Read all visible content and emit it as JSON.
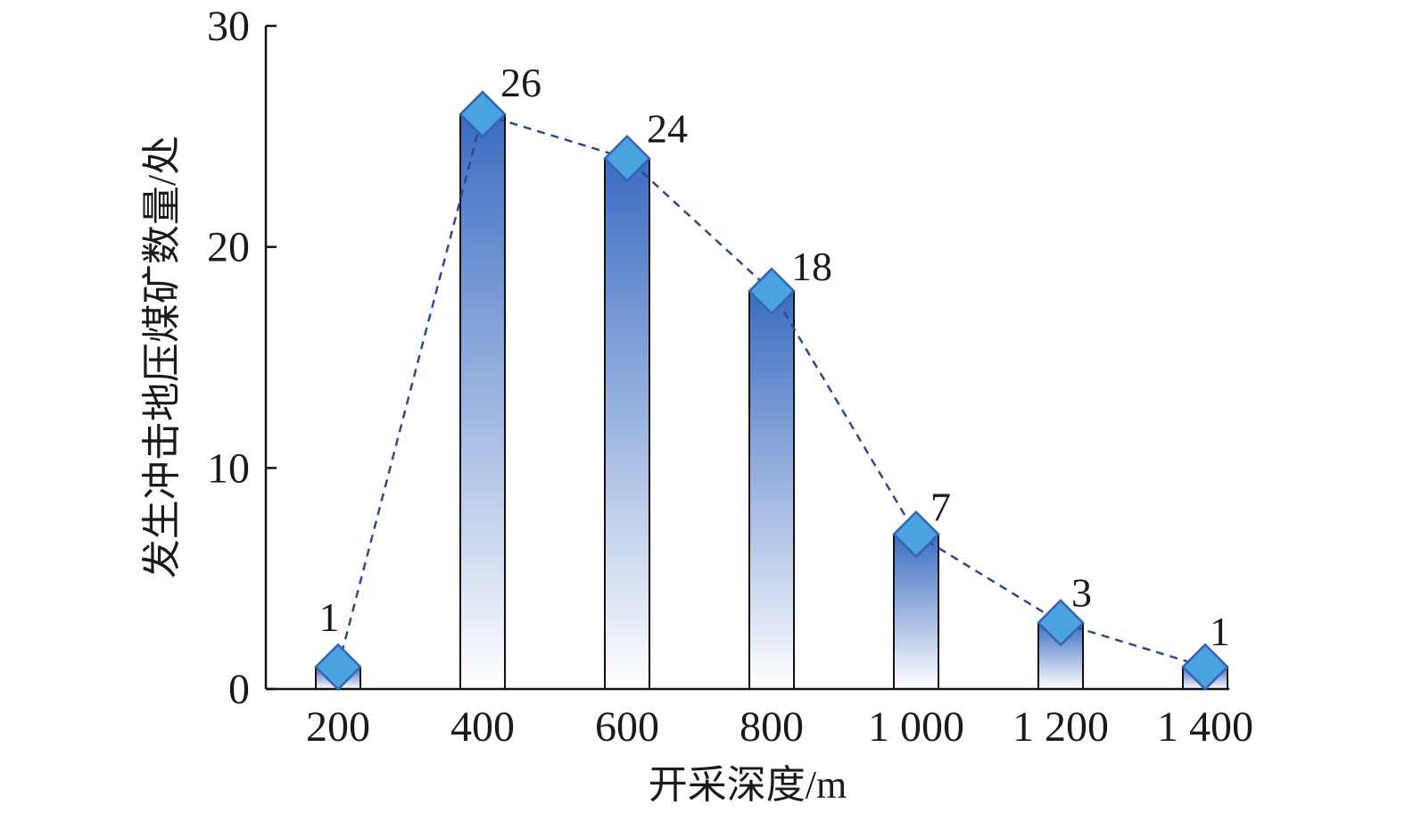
{
  "chart_data": {
    "type": "bar",
    "categories": [
      "200",
      "400",
      "600",
      "800",
      "1 000",
      "1 200",
      "1 400"
    ],
    "values": [
      1,
      26,
      24,
      18,
      7,
      3,
      1
    ],
    "data_labels": [
      "1",
      "26",
      "24",
      "18",
      "7",
      "3",
      "1"
    ],
    "title": "",
    "xlabel": "开采深度/m",
    "ylabel": "发生冲击地压煤矿数量/处",
    "ylim": [
      0,
      30
    ],
    "yticks": [
      "0",
      "10",
      "20",
      "30"
    ],
    "grid": false,
    "legend": "none",
    "overlay": {
      "type": "line",
      "style": "dashed",
      "marker": "diamond"
    },
    "colors": {
      "bar_top": "#3b6cc2",
      "bar_bottom": "#ffffff",
      "bar_outline": "#111111",
      "line": "#2f4a8a",
      "marker_fill": "#4aa3df",
      "marker_stroke": "#3563b5",
      "axis": "#111111"
    }
  }
}
